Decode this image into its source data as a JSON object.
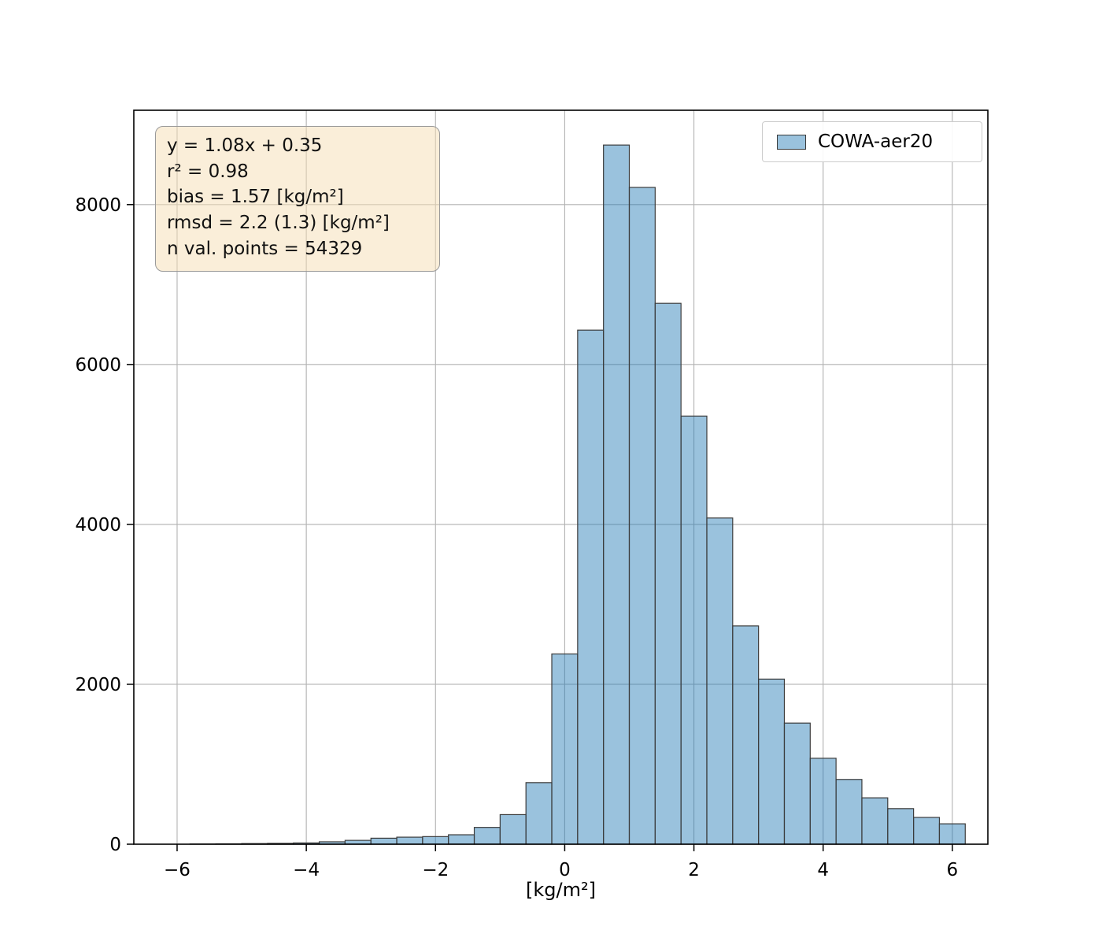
{
  "chart_data": {
    "type": "bar",
    "subtype": "histogram",
    "title": "",
    "xlabel": "[kg/m²]",
    "ylabel": "",
    "legend": {
      "label": "COWA-aer20",
      "position": "upper right"
    },
    "annotation_box": {
      "lines": [
        "y = 1.08x + 0.35",
        "r² = 0.98",
        "bias = 1.57 [kg/m²]",
        "rmsd = 2.2 (1.3) [kg/m²]",
        "n val. points = 54329"
      ]
    },
    "bins": {
      "start": -6.2,
      "width": 0.4,
      "counts": [
        0,
        3,
        5,
        8,
        11,
        16,
        30,
        48,
        75,
        88,
        95,
        118,
        210,
        370,
        770,
        2380,
        6430,
        8745,
        8215,
        6765,
        5355,
        4080,
        2730,
        2065,
        1515,
        1075,
        810,
        580,
        445,
        335,
        255
      ]
    },
    "xlim": [
      -6.67,
      6.55
    ],
    "ylim": [
      0,
      9180
    ],
    "xticks": {
      "values": [
        -6,
        -4,
        -2,
        0,
        2,
        4,
        6
      ],
      "labels": [
        "−6",
        "−4",
        "−2",
        "0",
        "2",
        "4",
        "6"
      ]
    },
    "yticks": {
      "values": [
        0,
        2000,
        4000,
        6000,
        8000
      ],
      "labels": [
        "0",
        "2000",
        "4000",
        "6000",
        "8000"
      ]
    },
    "grid": true,
    "colors": {
      "bar_fill": "#1f77b4",
      "bar_fill_opacity": 0.45,
      "bar_edge": "#3b3b3b",
      "grid": "#b2b2b2",
      "spine": "#000000",
      "annotation_bg": "#f5deb3"
    }
  }
}
